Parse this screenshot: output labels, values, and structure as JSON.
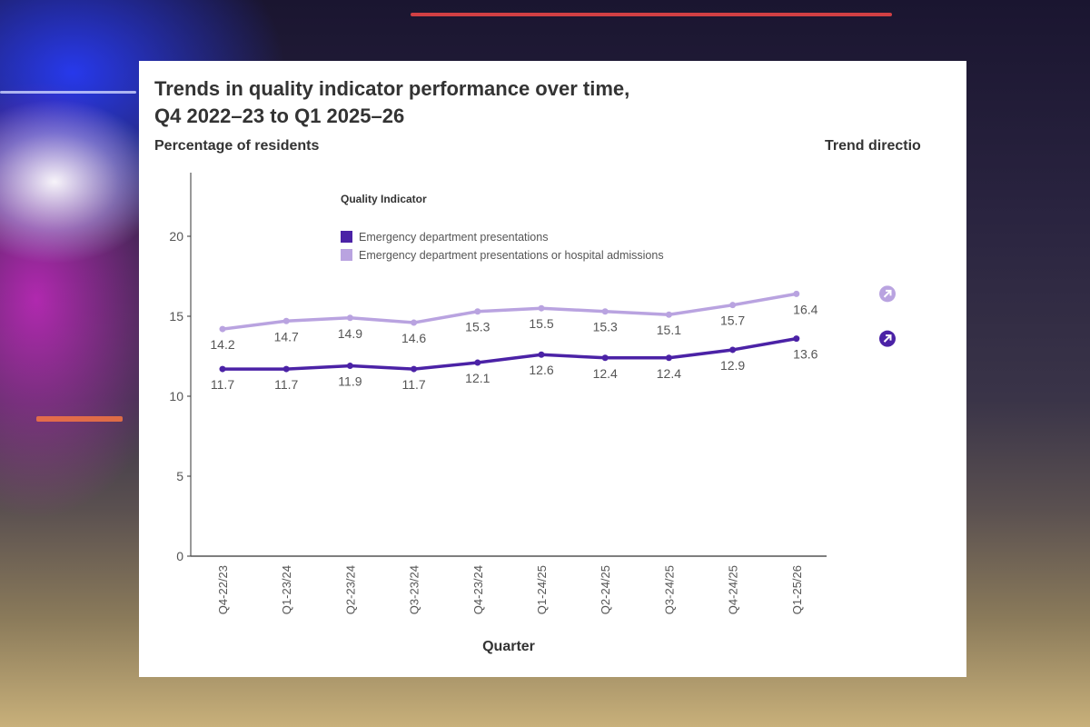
{
  "chart_data": {
    "type": "line",
    "title": "Trends in quality indicator performance over time,",
    "subtitle": "Q4 2022–23 to Q1 2025–26",
    "ylabel": "Percentage of residents",
    "xlabel": "Quarter",
    "trend_label": "Trend directio",
    "legend_title": "Quality Indicator",
    "legend_placement": "top-center",
    "ylim": [
      0,
      20
    ],
    "yticks": [
      0,
      5,
      10,
      15,
      20
    ],
    "grid": false,
    "categories": [
      "Q4-22/23",
      "Q1-23/24",
      "Q2-23/24",
      "Q3-23/24",
      "Q4-23/24",
      "Q1-24/25",
      "Q2-24/25",
      "Q3-24/25",
      "Q4-24/25",
      "Q1-25/26"
    ],
    "series": [
      {
        "name": "Emergency department presentations",
        "color": "#4b22a6",
        "trend": "up",
        "values": [
          11.7,
          11.7,
          11.9,
          11.7,
          12.1,
          12.6,
          12.4,
          12.4,
          12.9,
          13.6
        ]
      },
      {
        "name": "Emergency department presentations or hospital admissions",
        "color": "#b9a3e0",
        "trend": "up",
        "values": [
          14.2,
          14.7,
          14.9,
          14.6,
          15.3,
          15.5,
          15.3,
          15.1,
          15.7,
          16.4
        ]
      }
    ]
  }
}
